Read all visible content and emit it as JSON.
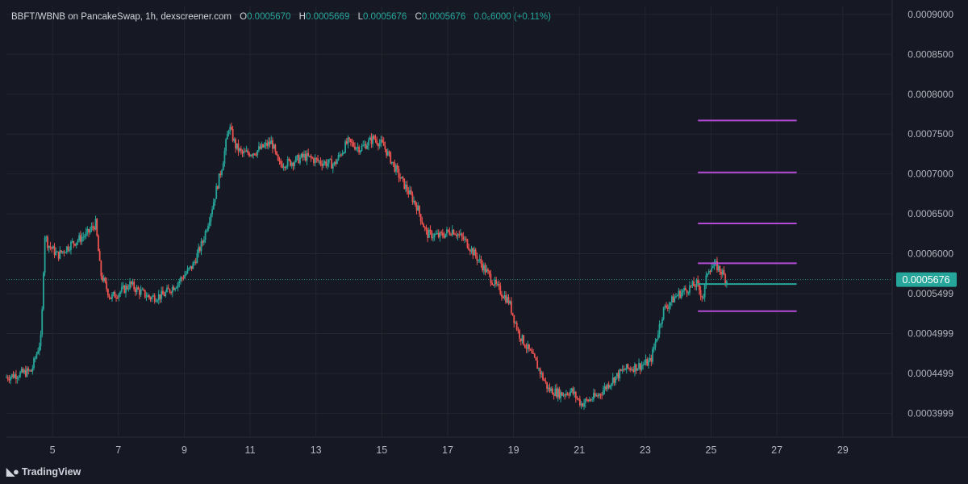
{
  "legend": {
    "symbol": "BBFT/WBNB on PancakeSwap, 1h, dexscreener.com",
    "open_label": "O",
    "open": "0.0005670",
    "high_label": "H",
    "high": "0.0005669",
    "low_label": "L",
    "low": "0.0005676",
    "close_label": "C",
    "close": "0.0005676",
    "change": "0.0₅6000 (+0.11%)"
  },
  "brand": {
    "logo_icon": "tradingview-logo-icon",
    "name": "TradingView"
  },
  "colors": {
    "background": "#161823",
    "grid": "#23252f",
    "up": "#26a69a",
    "down": "#ef5350",
    "level": "#b34bd6",
    "price_label": "#26a69a",
    "text": "#b2b5be"
  },
  "chart_data": {
    "type": "candlestick",
    "xlabel": "",
    "ylabel": "",
    "xlim": [
      3.6,
      30.5
    ],
    "ylim": [
      0.00037,
      0.00091
    ],
    "grid": true,
    "x_ticks": [
      "5",
      "7",
      "9",
      "11",
      "13",
      "15",
      "17",
      "19",
      "21",
      "23",
      "25",
      "27",
      "29"
    ],
    "y_ticks": [
      "0.0009000",
      "0.0008500",
      "0.0008000",
      "0.0007500",
      "0.0007000",
      "0.0006500",
      "0.0006000",
      "0.0005499",
      "0.0004999",
      "0.0004499",
      "0.0003999"
    ],
    "last_price": "0.0005676",
    "price_path": [
      [
        3.6,
        0.000445
      ],
      [
        4.4,
        0.000453
      ],
      [
        4.7,
        0.000495
      ],
      [
        4.8,
        0.000625
      ],
      [
        4.9,
        0.000612
      ],
      [
        5.2,
        0.000598
      ],
      [
        5.6,
        0.000612
      ],
      [
        6.1,
        0.000625
      ],
      [
        6.35,
        0.000638
      ],
      [
        6.5,
        0.000575
      ],
      [
        6.8,
        0.000545
      ],
      [
        7.2,
        0.000555
      ],
      [
        7.4,
        0.000562
      ],
      [
        7.6,
        0.000555
      ],
      [
        8.0,
        0.000545
      ],
      [
        8.4,
        0.000548
      ],
      [
        8.8,
        0.000562
      ],
      [
        9.3,
        0.000585
      ],
      [
        9.6,
        0.000615
      ],
      [
        9.9,
        0.00066
      ],
      [
        10.2,
        0.000712
      ],
      [
        10.4,
        0.00076
      ],
      [
        10.6,
        0.000735
      ],
      [
        10.8,
        0.000725
      ],
      [
        11.2,
        0.000728
      ],
      [
        11.7,
        0.00074
      ],
      [
        11.9,
        0.000712
      ],
      [
        12.3,
        0.000715
      ],
      [
        12.7,
        0.000722
      ],
      [
        13.2,
        0.000715
      ],
      [
        13.6,
        0.000712
      ],
      [
        14.0,
        0.00074
      ],
      [
        14.4,
        0.000732
      ],
      [
        14.8,
        0.000745
      ],
      [
        15.1,
        0.000735
      ],
      [
        15.6,
        0.000695
      ],
      [
        16.1,
        0.00066
      ],
      [
        16.4,
        0.000625
      ],
      [
        16.8,
        0.000622
      ],
      [
        17.2,
        0.00063
      ],
      [
        17.6,
        0.000615
      ],
      [
        18.1,
        0.000585
      ],
      [
        18.5,
        0.00056
      ],
      [
        18.9,
        0.00054
      ],
      [
        19.2,
        0.0005
      ],
      [
        19.7,
        0.000465
      ],
      [
        20.1,
        0.00043
      ],
      [
        20.5,
        0.000424
      ],
      [
        20.8,
        0.000428
      ],
      [
        21.1,
        0.000412
      ],
      [
        21.6,
        0.000422
      ],
      [
        22.0,
        0.00044
      ],
      [
        22.4,
        0.000455
      ],
      [
        22.9,
        0.00046
      ],
      [
        23.2,
        0.000465
      ],
      [
        23.6,
        0.00053
      ],
      [
        24.0,
        0.000548
      ],
      [
        24.4,
        0.000558
      ],
      [
        24.6,
        0.000562
      ],
      [
        24.8,
        0.000545
      ],
      [
        24.95,
        0.000582
      ],
      [
        25.2,
        0.000585
      ],
      [
        25.4,
        0.000575
      ],
      [
        25.5,
        0.000567
      ]
    ],
    "levels": [
      {
        "price": 0.000767,
        "x_start": 24.6,
        "x_end": 27.6,
        "color": "#b34bd6"
      },
      {
        "price": 0.000702,
        "x_start": 24.6,
        "x_end": 27.6,
        "color": "#b34bd6"
      },
      {
        "price": 0.000638,
        "x_start": 24.6,
        "x_end": 27.6,
        "color": "#b34bd6"
      },
      {
        "price": 0.000588,
        "x_start": 24.6,
        "x_end": 27.6,
        "color": "#b34bd6"
      },
      {
        "price": 0.000528,
        "x_start": 24.6,
        "x_end": 27.6,
        "color": "#b34bd6"
      },
      {
        "price": 0.000562,
        "x_start": 24.6,
        "x_end": 27.6,
        "color": "#26a69a"
      }
    ]
  }
}
